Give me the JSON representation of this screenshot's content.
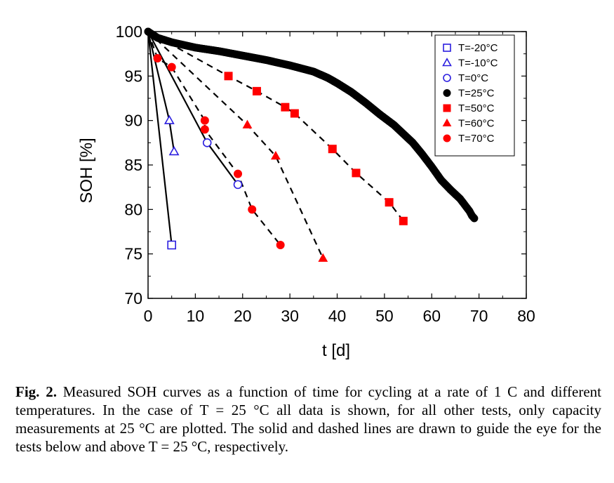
{
  "chart_data": {
    "type": "scatter",
    "xlabel": "t [d]",
    "ylabel": "SOH [%]",
    "xlim": [
      0,
      80
    ],
    "ylim": [
      70,
      100
    ],
    "xticks": [
      0,
      10,
      20,
      30,
      40,
      50,
      60,
      70,
      80
    ],
    "yticks": [
      70,
      75,
      80,
      85,
      90,
      95,
      100
    ],
    "grid": false,
    "legend_position": "top-right",
    "series": [
      {
        "name": "T=-20°C",
        "marker": "square-open",
        "color": "#2b1ee0",
        "x": [
          0,
          5
        ],
        "y": [
          100,
          76
        ],
        "line": "solid"
      },
      {
        "name": "T=-10°C",
        "marker": "triangle-open",
        "color": "#2b1ee0",
        "x": [
          0,
          4.5,
          5.5
        ],
        "y": [
          100,
          90,
          86.5
        ],
        "line": "solid"
      },
      {
        "name": "T=0°C",
        "marker": "circle-open",
        "color": "#2b1ee0",
        "x": [
          0,
          12.5,
          19
        ],
        "y": [
          100,
          87.5,
          82.8
        ],
        "line": "solid"
      },
      {
        "name": "T=25°C",
        "marker": "circle-filled",
        "color": "#000000",
        "x": [
          0,
          2,
          5,
          10,
          15,
          20,
          25,
          30,
          35,
          38,
          40,
          43,
          46,
          49,
          52,
          55,
          56,
          58,
          60,
          62,
          64,
          66,
          67,
          68,
          68.5,
          69
        ],
        "y": [
          100,
          99.3,
          98.8,
          98.2,
          97.8,
          97.3,
          96.8,
          96.2,
          95.5,
          94.8,
          94.2,
          93.2,
          92.0,
          90.7,
          89.5,
          88.0,
          87.5,
          86.2,
          84.8,
          83.3,
          82.2,
          81.2,
          80.5,
          79.8,
          79.3,
          79.0
        ],
        "line": "none"
      },
      {
        "name": "T=50°C",
        "marker": "square-filled",
        "color": "#ff0000",
        "x": [
          0,
          17,
          23,
          29,
          31,
          39,
          44,
          51,
          54
        ],
        "y": [
          100,
          95,
          93.3,
          91.5,
          90.8,
          86.8,
          84.1,
          80.8,
          78.7
        ],
        "line": "dashed"
      },
      {
        "name": "T=60°C",
        "marker": "triangle-filled",
        "color": "#ff0000",
        "x": [
          0,
          21,
          27,
          37
        ],
        "y": [
          100,
          89.5,
          86,
          74.5
        ],
        "line": "dashed"
      },
      {
        "name": "T=70°C",
        "marker": "circle-filled",
        "color": "#ff0000",
        "x": [
          0,
          2,
          5,
          12,
          12,
          19,
          22,
          28
        ],
        "y": [
          100,
          97,
          96,
          90,
          89,
          84,
          80,
          76
        ],
        "line": "dashed"
      }
    ]
  },
  "caption": {
    "label": "Fig. 2.",
    "text": " Measured SOH curves as a function of time for cycling at a rate of 1 C and different temperatures. In the case of T = 25 °C all data is shown, for all other tests, only capacity measurements at 25 °C are plotted. The solid and dashed lines are drawn to guide the eye for the tests below and above T = 25 °C, respectively."
  }
}
